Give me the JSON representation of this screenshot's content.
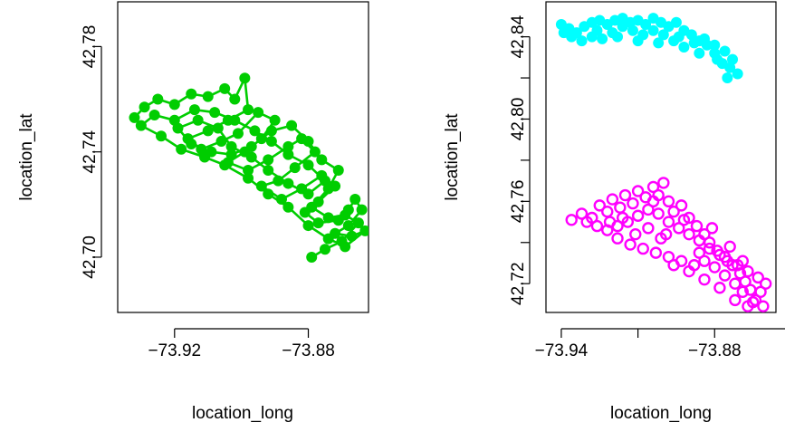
{
  "chart_data": [
    {
      "type": "line",
      "title": "",
      "xlabel": "location_long",
      "ylabel": "location_lat",
      "xlim": [
        -73.937,
        -73.862
      ],
      "ylim": [
        42.679,
        42.797
      ],
      "xticks": [
        -73.92,
        -73.88
      ],
      "xtick_labels": [
        "−73.92",
        "−73.88"
      ],
      "yticks": [
        42.7,
        42.74,
        42.78
      ],
      "ytick_labels": [
        "42.70",
        "42.74",
        "42.78"
      ],
      "grid": false,
      "series": [
        {
          "color": "#00cd00",
          "marker": "filled-circle",
          "connected": true,
          "points": [
            [
              -73.932,
              42.753
            ],
            [
              -73.929,
              42.757
            ],
            [
              -73.925,
              42.76
            ],
            [
              -73.92,
              42.758
            ],
            [
              -73.915,
              42.762
            ],
            [
              -73.91,
              42.761
            ],
            [
              -73.905,
              42.764
            ],
            [
              -73.902,
              42.76
            ],
            [
              -73.899,
              42.768
            ],
            [
              -73.898,
              42.756
            ],
            [
              -73.904,
              42.752
            ],
            [
              -73.91,
              42.748
            ],
            [
              -73.916,
              42.745
            ],
            [
              -73.912,
              42.741
            ],
            [
              -73.906,
              42.744
            ],
            [
              -73.901,
              42.747
            ],
            [
              -73.895,
              42.755
            ],
            [
              -73.89,
              42.752
            ],
            [
              -73.894,
              42.745
            ],
            [
              -73.899,
              42.74
            ],
            [
              -73.904,
              42.736
            ],
            [
              -73.898,
              42.733
            ],
            [
              -73.892,
              42.737
            ],
            [
              -73.886,
              42.742
            ],
            [
              -73.882,
              42.745
            ],
            [
              -73.878,
              42.74
            ],
            [
              -73.884,
              42.734
            ],
            [
              -73.889,
              42.729
            ],
            [
              -73.894,
              42.727
            ],
            [
              -73.888,
              42.722
            ],
            [
              -73.882,
              42.726
            ],
            [
              -73.876,
              42.731
            ],
            [
              -73.872,
              42.727
            ],
            [
              -73.877,
              42.721
            ],
            [
              -73.881,
              42.717
            ],
            [
              -73.877,
              42.713
            ],
            [
              -73.871,
              42.714
            ],
            [
              -73.868,
              42.718
            ],
            [
              -73.866,
              42.722
            ],
            [
              -73.864,
              42.718
            ],
            [
              -73.868,
              42.712
            ],
            [
              -73.872,
              42.709
            ],
            [
              -73.867,
              42.708
            ],
            [
              -73.863,
              42.71
            ],
            [
              -73.869,
              42.704
            ],
            [
              -73.874,
              42.707
            ],
            [
              -73.88,
              42.712
            ],
            [
              -73.886,
              42.719
            ],
            [
              -73.892,
              42.724
            ],
            [
              -73.898,
              42.73
            ],
            [
              -73.905,
              42.735
            ],
            [
              -73.911,
              42.738
            ],
            [
              -73.918,
              42.741
            ],
            [
              -73.924,
              42.746
            ],
            [
              -73.93,
              42.75
            ],
            [
              -73.926,
              42.754
            ],
            [
              -73.92,
              42.752
            ],
            [
              -73.914,
              42.756
            ],
            [
              -73.908,
              42.755
            ],
            [
              -73.902,
              42.752
            ],
            [
              -73.896,
              42.748
            ],
            [
              -73.891,
              42.744
            ],
            [
              -73.886,
              42.739
            ],
            [
              -73.88,
              42.735
            ],
            [
              -73.875,
              42.729
            ],
            [
              -73.88,
              42.724
            ],
            [
              -73.886,
              42.728
            ],
            [
              -73.892,
              42.733
            ],
            [
              -73.897,
              42.738
            ],
            [
              -73.903,
              42.742
            ],
            [
              -73.907,
              42.749
            ],
            [
              -73.913,
              42.752
            ],
            [
              -73.919,
              42.749
            ],
            [
              -73.915,
              42.743
            ],
            [
              -73.909,
              42.74
            ],
            [
              -73.903,
              42.739
            ],
            [
              -73.897,
              42.742
            ],
            [
              -73.891,
              42.748
            ],
            [
              -73.885,
              42.75
            ],
            [
              -73.88,
              42.744
            ],
            [
              -73.876,
              42.737
            ],
            [
              -73.871,
              42.733
            ],
            [
              -73.874,
              42.726
            ],
            [
              -73.879,
              42.719
            ],
            [
              -73.874,
              42.715
            ],
            [
              -73.869,
              42.716
            ],
            [
              -73.865,
              42.713
            ],
            [
              -73.87,
              42.706
            ],
            [
              -73.875,
              42.703
            ],
            [
              -73.879,
              42.7
            ]
          ]
        }
      ]
    },
    {
      "type": "scatter",
      "title": "",
      "xlabel": "location_long",
      "ylabel": "location_lat",
      "xlim": [
        -73.946,
        -73.856
      ],
      "ylim": [
        42.706,
        42.857
      ],
      "xticks": [
        -73.94,
        -73.91,
        -73.88,
        -73.85
      ],
      "xtick_labels": [
        "−73.94",
        "",
        "−73.88",
        ""
      ],
      "yticks": [
        42.72,
        42.74,
        42.76,
        42.78,
        42.8,
        42.82,
        42.84
      ],
      "ytick_labels": [
        "42.72",
        "",
        "42.76",
        "",
        "42.80",
        "",
        "42.84"
      ],
      "grid": false,
      "series": [
        {
          "color": "#00ffff",
          "marker": "filled-circle",
          "connected": false,
          "points": [
            [
              -73.94,
              42.846
            ],
            [
              -73.937,
              42.844
            ],
            [
              -73.934,
              42.842
            ],
            [
              -73.931,
              42.845
            ],
            [
              -73.928,
              42.847
            ],
            [
              -73.925,
              42.848
            ],
            [
              -73.922,
              42.846
            ],
            [
              -73.919,
              42.848
            ],
            [
              -73.916,
              42.849
            ],
            [
              -73.913,
              42.847
            ],
            [
              -73.91,
              42.848
            ],
            [
              -73.907,
              42.846
            ],
            [
              -73.904,
              42.849
            ],
            [
              -73.901,
              42.847
            ],
            [
              -73.898,
              42.845
            ],
            [
              -73.895,
              42.847
            ],
            [
              -73.892,
              42.843
            ],
            [
              -73.889,
              42.841
            ],
            [
              -73.886,
              42.838
            ],
            [
              -73.883,
              42.836
            ],
            [
              -73.88,
              42.832
            ],
            [
              -73.877,
              42.827
            ],
            [
              -73.874,
              42.825
            ],
            [
              -73.871,
              42.822
            ],
            [
              -73.873,
              42.829
            ],
            [
              -73.876,
              42.833
            ],
            [
              -73.88,
              42.836
            ],
            [
              -73.884,
              42.839
            ],
            [
              -73.888,
              42.837
            ],
            [
              -73.892,
              42.835
            ],
            [
              -73.896,
              42.838
            ],
            [
              -73.9,
              42.841
            ],
            [
              -73.904,
              42.843
            ],
            [
              -73.908,
              42.841
            ],
            [
              -73.912,
              42.843
            ],
            [
              -73.916,
              42.845
            ],
            [
              -73.92,
              42.842
            ],
            [
              -73.924,
              42.839
            ],
            [
              -73.928,
              42.84
            ],
            [
              -73.932,
              42.838
            ],
            [
              -73.936,
              42.84
            ],
            [
              -73.939,
              42.842
            ],
            [
              -73.926,
              42.843
            ],
            [
              -73.918,
              42.84
            ],
            [
              -73.91,
              42.838
            ],
            [
              -73.902,
              42.837
            ],
            [
              -73.894,
              42.84
            ],
            [
              -73.886,
              42.832
            ],
            [
              -73.879,
              42.829
            ],
            [
              -73.875,
              42.82
            ]
          ]
        },
        {
          "color": "#ff00ff",
          "marker": "open-circle",
          "connected": false,
          "points": [
            [
              -73.936,
              42.751
            ],
            [
              -73.932,
              42.754
            ],
            [
              -73.928,
              42.752
            ],
            [
              -73.925,
              42.758
            ],
            [
              -73.922,
              42.755
            ],
            [
              -73.92,
              42.761
            ],
            [
              -73.917,
              42.757
            ],
            [
              -73.915,
              42.763
            ],
            [
              -73.912,
              42.759
            ],
            [
              -73.91,
              42.765
            ],
            [
              -73.907,
              42.762
            ],
            [
              -73.904,
              42.767
            ],
            [
              -73.902,
              42.763
            ],
            [
              -73.9,
              42.769
            ],
            [
              -73.898,
              42.76
            ],
            [
              -73.896,
              42.755
            ],
            [
              -73.893,
              42.758
            ],
            [
              -73.89,
              42.752
            ],
            [
              -73.887,
              42.748
            ],
            [
              -73.884,
              42.744
            ],
            [
              -73.882,
              42.74
            ],
            [
              -73.879,
              42.736
            ],
            [
              -73.876,
              42.733
            ],
            [
              -73.873,
              42.729
            ],
            [
              -73.87,
              42.725
            ],
            [
              -73.868,
              42.721
            ],
            [
              -73.866,
              42.717
            ],
            [
              -73.864,
              42.712
            ],
            [
              -73.862,
              42.716
            ],
            [
              -73.86,
              42.72
            ],
            [
              -73.863,
              42.723
            ],
            [
              -73.867,
              42.726
            ],
            [
              -73.871,
              42.729
            ],
            [
              -73.875,
              42.731
            ],
            [
              -73.878,
              42.734
            ],
            [
              -73.882,
              42.737
            ],
            [
              -73.886,
              42.741
            ],
            [
              -73.89,
              42.744
            ],
            [
              -73.894,
              42.747
            ],
            [
              -73.898,
              42.75
            ],
            [
              -73.902,
              42.754
            ],
            [
              -73.906,
              42.756
            ],
            [
              -73.91,
              42.753
            ],
            [
              -73.914,
              42.75
            ],
            [
              -73.918,
              42.748
            ],
            [
              -73.922,
              42.746
            ],
            [
              -73.918,
              42.742
            ],
            [
              -73.913,
              42.739
            ],
            [
              -73.908,
              42.737
            ],
            [
              -73.903,
              42.735
            ],
            [
              -73.898,
              42.733
            ],
            [
              -73.893,
              42.731
            ],
            [
              -73.888,
              42.729
            ],
            [
              -73.884,
              42.731
            ],
            [
              -73.88,
              42.728
            ],
            [
              -73.876,
              42.724
            ],
            [
              -73.872,
              42.72
            ],
            [
              -73.869,
              42.716
            ],
            [
              -73.865,
              42.711
            ],
            [
              -73.861,
              42.709
            ],
            [
              -73.867,
              42.709
            ],
            [
              -73.872,
              42.712
            ],
            [
              -73.878,
              42.718
            ],
            [
              -73.884,
              42.722
            ],
            [
              -73.89,
              42.726
            ],
            [
              -73.896,
              42.729
            ],
            [
              -73.901,
              42.742
            ],
            [
              -73.906,
              42.747
            ],
            [
              -73.911,
              42.744
            ],
            [
              -73.916,
              42.752
            ],
            [
              -73.921,
              42.75
            ],
            [
              -73.926,
              42.748
            ],
            [
              -73.93,
              42.75
            ],
            [
              -73.904,
              42.76
            ],
            [
              -73.899,
              42.744
            ],
            [
              -73.892,
              42.751
            ],
            [
              -73.886,
              42.735
            ],
            [
              -73.881,
              42.747
            ],
            [
              -73.874,
              42.738
            ],
            [
              -73.869,
              42.731
            ]
          ]
        }
      ]
    }
  ]
}
